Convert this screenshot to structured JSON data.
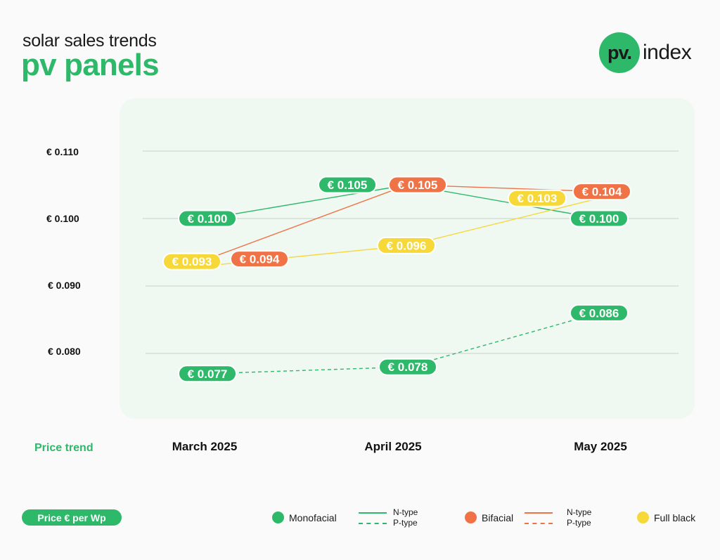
{
  "header": {
    "subtitle": "solar sales trends",
    "title": "pv panels",
    "logo_mark": "pv.",
    "logo_word": "index"
  },
  "colors": {
    "monofacial": "#2eb86a",
    "bifacial": "#ef7346",
    "full_black": "#f6d838",
    "brand_green": "#2eb86a",
    "panel_bg": "#f0f8f2",
    "grid": "#c9d0cb"
  },
  "chart_data": {
    "type": "line",
    "categories": [
      "March 2025",
      "April 2025",
      "May 2025"
    ],
    "y_tick_labels": [
      "€ 0.110",
      "€ 0.100",
      "€ 0.090",
      "€ 0.080"
    ],
    "y_ticks": [
      0.11,
      0.1,
      0.09,
      0.08
    ],
    "ylim": [
      0.073,
      0.115
    ],
    "grid": true,
    "x_caption": "Price trend",
    "unit_label": "Price € per Wp",
    "series": [
      {
        "key": "mono_n",
        "type": "Monofacial",
        "variant": "N-type",
        "color_key": "monofacial",
        "dashed": false,
        "values": [
          0.1,
          0.105,
          0.1
        ],
        "labels": [
          "€ 0.100",
          "€ 0.105",
          "€ 0.100"
        ]
      },
      {
        "key": "mono_p",
        "type": "Monofacial",
        "variant": "P-type",
        "color_key": "monofacial",
        "dashed": true,
        "values": [
          0.077,
          0.078,
          0.086
        ],
        "labels": [
          "€ 0.077",
          "€ 0.078",
          "€ 0.086"
        ]
      },
      {
        "key": "bifacial_n",
        "type": "Bifacial",
        "variant": "N-type",
        "color_key": "bifacial",
        "dashed": false,
        "values": [
          0.094,
          0.105,
          0.104
        ],
        "labels": [
          "€ 0.094",
          "€ 0.105",
          "€ 0.104"
        ]
      },
      {
        "key": "full_black",
        "type": "Full black",
        "variant": "",
        "color_key": "full_black",
        "dashed": false,
        "values": [
          0.093,
          0.096,
          0.103
        ],
        "labels": [
          "€ 0.093",
          "€ 0.096",
          "€ 0.103"
        ]
      }
    ]
  },
  "legend": {
    "monofacial": "Monofacial",
    "bifacial": "Bifacial",
    "full_black": "Full black",
    "n_type": "N-type",
    "p_type": "P-type"
  }
}
